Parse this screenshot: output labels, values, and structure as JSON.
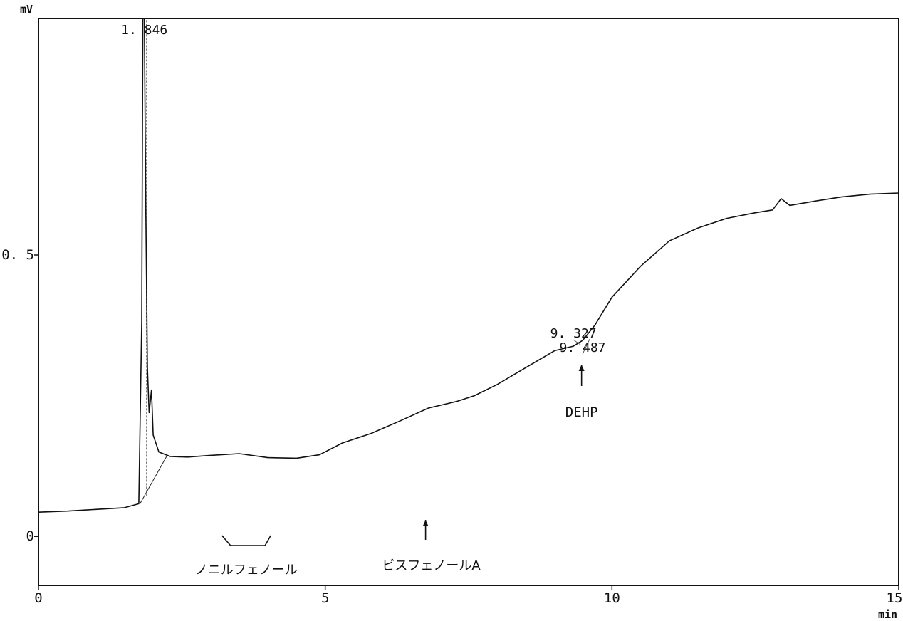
{
  "chart_data": {
    "type": "line",
    "title": "",
    "xlabel": "min",
    "ylabel": "mV",
    "xlim": [
      0,
      15
    ],
    "ylim": [
      -0.087,
      0.92
    ],
    "x_ticks": [
      {
        "value": 0,
        "label": "0"
      },
      {
        "value": 5,
        "label": "5"
      },
      {
        "value": 10,
        "label": "10"
      },
      {
        "value": 15,
        "label": "15"
      }
    ],
    "y_ticks": [
      {
        "value": 0,
        "label": "0"
      },
      {
        "value": 0.5,
        "label": "0. 5"
      }
    ],
    "grid": false,
    "series": [
      {
        "values": [
          [
            0.0,
            0.043
          ],
          [
            0.5,
            0.045
          ],
          [
            1.0,
            0.048
          ],
          [
            1.5,
            0.051
          ],
          [
            1.75,
            0.058
          ],
          [
            1.8,
            0.38
          ],
          [
            1.82,
            0.92
          ],
          [
            1.846,
            0.92
          ],
          [
            1.87,
            0.6
          ],
          [
            1.9,
            0.3
          ],
          [
            1.93,
            0.22
          ],
          [
            1.97,
            0.26
          ],
          [
            2.0,
            0.18
          ],
          [
            2.1,
            0.15
          ],
          [
            2.3,
            0.142
          ],
          [
            2.6,
            0.141
          ],
          [
            3.0,
            0.144
          ],
          [
            3.5,
            0.147
          ],
          [
            4.0,
            0.14
          ],
          [
            4.5,
            0.139
          ],
          [
            4.9,
            0.145
          ],
          [
            5.3,
            0.166
          ],
          [
            5.8,
            0.183
          ],
          [
            6.3,
            0.205
          ],
          [
            6.8,
            0.228
          ],
          [
            7.3,
            0.24
          ],
          [
            7.6,
            0.25
          ],
          [
            8.0,
            0.27
          ],
          [
            8.5,
            0.3
          ],
          [
            9.0,
            0.33
          ],
          [
            9.327,
            0.338
          ],
          [
            9.487,
            0.348
          ],
          [
            9.7,
            0.375
          ],
          [
            10.0,
            0.425
          ],
          [
            10.5,
            0.48
          ],
          [
            11.0,
            0.525
          ],
          [
            11.5,
            0.548
          ],
          [
            12.0,
            0.565
          ],
          [
            12.5,
            0.575
          ],
          [
            12.8,
            0.58
          ],
          [
            12.95,
            0.6
          ],
          [
            13.1,
            0.588
          ],
          [
            13.5,
            0.595
          ],
          [
            14.0,
            0.603
          ],
          [
            14.5,
            0.608
          ],
          [
            15.0,
            0.61
          ]
        ]
      }
    ],
    "annotations": [
      {
        "type": "peak_label",
        "text": "1. 846",
        "x": 1.846
      },
      {
        "type": "peak_label",
        "text": "9. 327",
        "x": 9.327
      },
      {
        "type": "peak_label",
        "text": "9. 487",
        "x": 9.487
      },
      {
        "type": "arrow_label",
        "text": "DEHP",
        "x": 9.47
      },
      {
        "type": "arrow_label",
        "text": "ビスフェノールA",
        "x": 6.75
      },
      {
        "type": "bracket_label",
        "text": "ノニルフェノール",
        "x_range": [
          3.2,
          4.05
        ]
      }
    ]
  }
}
